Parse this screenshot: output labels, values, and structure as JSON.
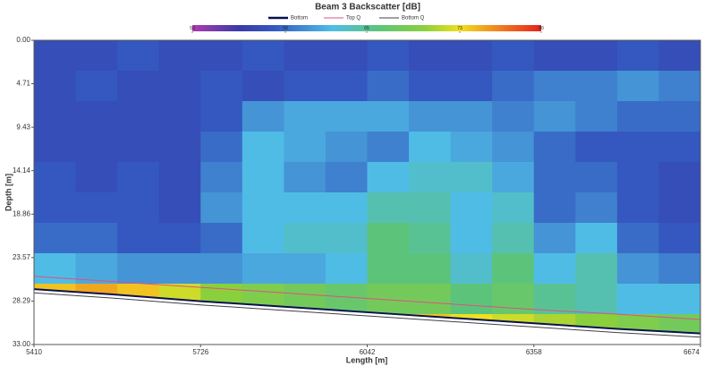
{
  "chart_data": {
    "type": "heatmap",
    "title": "Beam 3 Backscatter [dB]",
    "xlabel": "Length [m]",
    "ylabel": "Depth [m]",
    "xlim": [
      5410,
      6674
    ],
    "ylim": [
      0,
      33
    ],
    "y_inverted": true,
    "xticks": [
      5410,
      5726,
      6042,
      6358,
      6674
    ],
    "yticks": [
      {
        "value": 0,
        "label": "0.00"
      },
      4.71,
      9.43,
      14.14,
      18.86,
      23.57,
      28.29,
      {
        "value": 33,
        "label": "33.00"
      }
    ],
    "clim": [
      50,
      80
    ],
    "cbar_ticks": [
      50,
      58,
      65,
      73,
      80
    ],
    "colorscale": [
      {
        "value": 50,
        "color": "#b03ab0"
      },
      {
        "value": 54,
        "color": "#3a3aa8"
      },
      {
        "value": 57,
        "color": "#3458bf"
      },
      {
        "value": 62,
        "color": "#4fbce6"
      },
      {
        "value": 66,
        "color": "#5cc47a"
      },
      {
        "value": 70,
        "color": "#8ad03c"
      },
      {
        "value": 73,
        "color": "#f0e020"
      },
      {
        "value": 76,
        "color": "#f08a20"
      },
      {
        "value": 80,
        "color": "#e62020"
      }
    ],
    "x_bins": [
      5410,
      5489,
      5568,
      5647,
      5726,
      5805,
      5884,
      5963,
      6042,
      6121,
      6200,
      6279,
      6358,
      6437,
      6516,
      6595,
      6674
    ],
    "y_bins": [
      0,
      3.3,
      6.6,
      9.9,
      13.2,
      16.5,
      19.8,
      23.1,
      26.4,
      29.7,
      33
    ],
    "z": [
      [
        56,
        56,
        57,
        56,
        56,
        57,
        56,
        56,
        57,
        56,
        56,
        57,
        56,
        56,
        57,
        56
      ],
      [
        56,
        57,
        56,
        56,
        57,
        56,
        57,
        57,
        58,
        57,
        57,
        58,
        59,
        59,
        60,
        59
      ],
      [
        56,
        56,
        56,
        56,
        57,
        60,
        61,
        61,
        61,
        60,
        60,
        59,
        60,
        59,
        58,
        58
      ],
      [
        56,
        56,
        56,
        56,
        58,
        62,
        61,
        60,
        59,
        62,
        61,
        60,
        58,
        57,
        57,
        57
      ],
      [
        57,
        56,
        57,
        56,
        59,
        62,
        60,
        59,
        62,
        63,
        63,
        61,
        58,
        58,
        57,
        56
      ],
      [
        57,
        57,
        57,
        56,
        60,
        62,
        62,
        62,
        64,
        64,
        62,
        63,
        58,
        59,
        57,
        56
      ],
      [
        58,
        58,
        57,
        57,
        58,
        62,
        63,
        63,
        66,
        65,
        62,
        64,
        60,
        62,
        58,
        57
      ],
      [
        62,
        61,
        60,
        60,
        60,
        61,
        61,
        62,
        66,
        66,
        63,
        66,
        62,
        64,
        60,
        59
      ],
      [
        74,
        75,
        74,
        72,
        70,
        69,
        68,
        67,
        68,
        68,
        66,
        67,
        65,
        64,
        62,
        62
      ],
      [
        null,
        null,
        null,
        null,
        null,
        null,
        null,
        76,
        75,
        74,
        73,
        72,
        71,
        70,
        69,
        68
      ]
    ],
    "x": [
      5410,
      5568,
      5726,
      5884,
      6042,
      6200,
      6358,
      6516,
      6674
    ],
    "series": [
      {
        "name": "Bottom",
        "color": "#0a1050",
        "values": [
          27.0,
          27.6,
          28.3,
          28.9,
          29.5,
          30.1,
          30.7,
          31.3,
          31.8
        ]
      },
      {
        "name": "Top Q",
        "color": "#e05080",
        "values": [
          25.6,
          26.2,
          26.8,
          27.4,
          28.0,
          28.6,
          29.2,
          29.7,
          30.3
        ]
      },
      {
        "name": "Bottom Q",
        "color": "#404040",
        "values": [
          27.4,
          28.0,
          28.7,
          29.3,
          29.9,
          30.5,
          31.1,
          31.7,
          32.2
        ]
      }
    ]
  }
}
